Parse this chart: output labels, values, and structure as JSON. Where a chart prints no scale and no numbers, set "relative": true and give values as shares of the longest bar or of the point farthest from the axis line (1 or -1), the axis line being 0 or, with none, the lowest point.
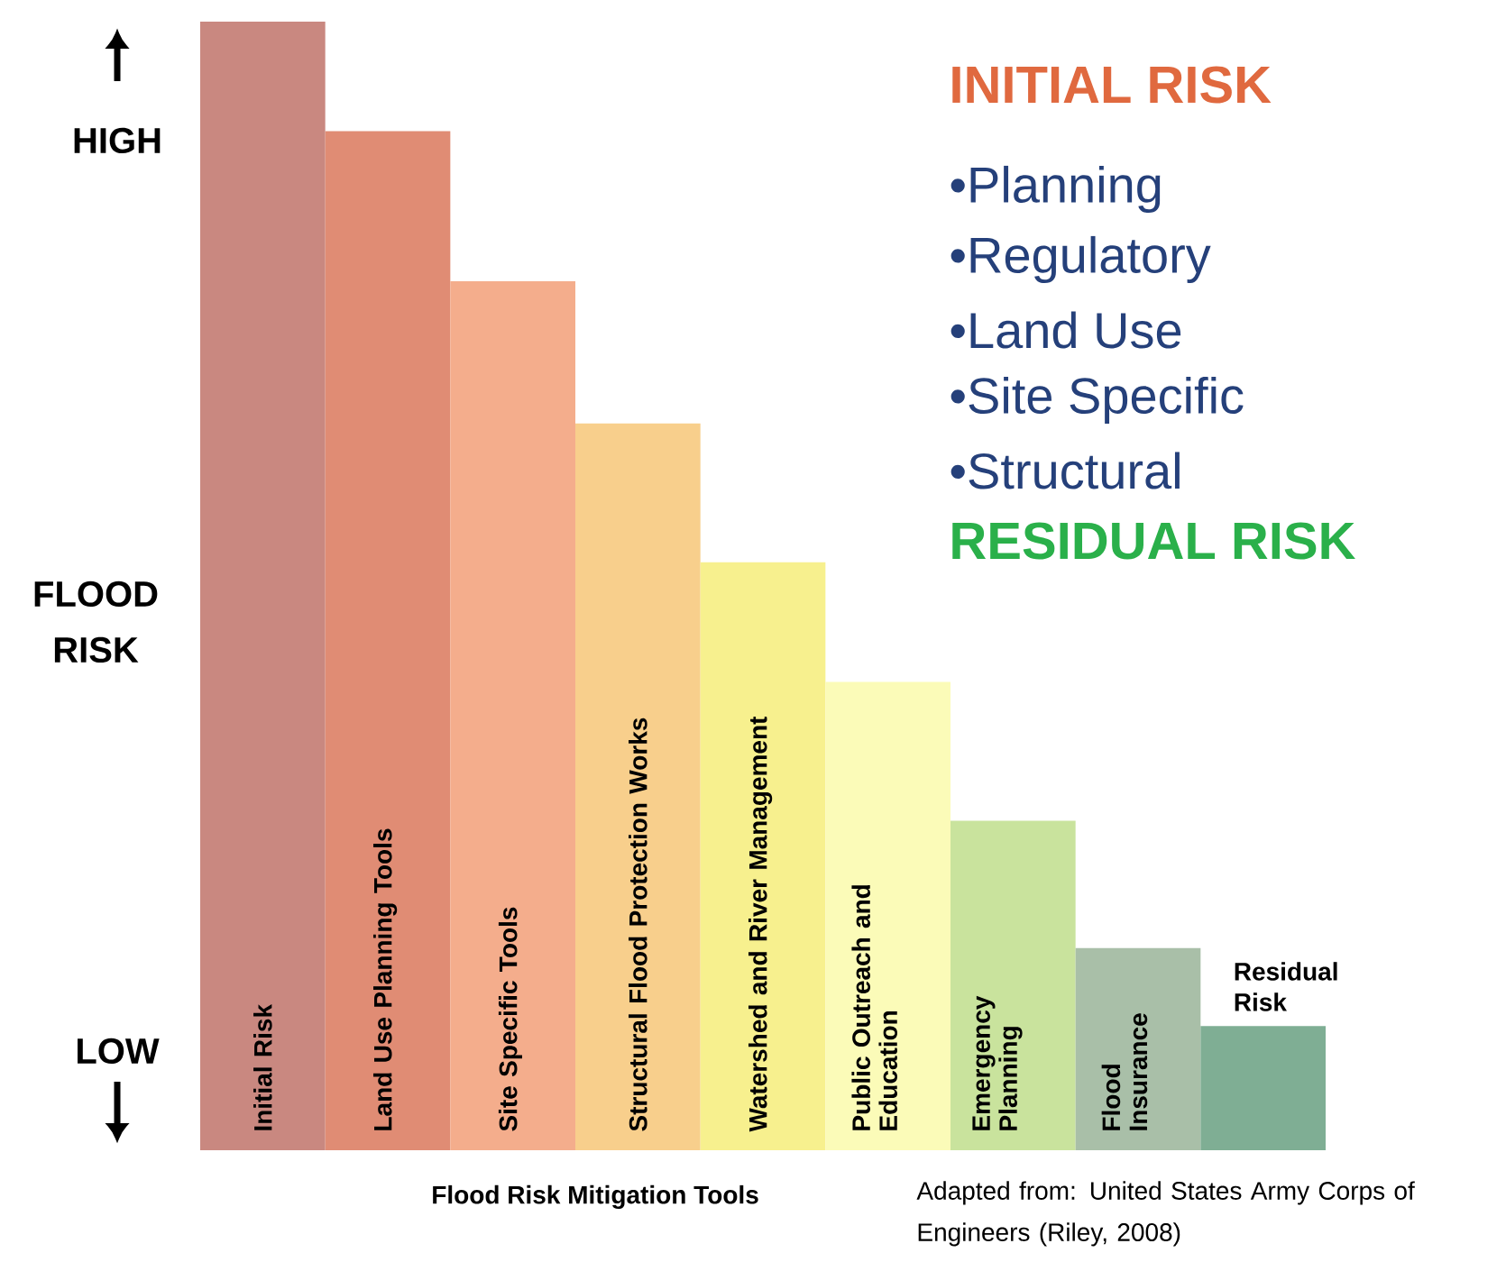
{
  "chart_data": {
    "type": "bar",
    "relative": true,
    "categories": [
      "Initial Risk",
      "Land Use Planning Tools",
      "Site Specific Tools",
      "Structural Flood Protection Works",
      "Watershed and River Management",
      "Public Outreach and Education",
      "Emergency Planning",
      "Flood Insurance",
      "Residual Risk"
    ],
    "values": [
      1,
      0.903,
      0.77,
      0.644,
      0.521,
      0.415,
      0.292,
      0.179,
      0.11
    ],
    "colors": [
      "#c98880",
      "#e08c74",
      "#f4ad8c",
      "#f8cf8c",
      "#f7f08e",
      "#fbfbb8",
      "#c9e39d",
      "#a9bfa8",
      "#7fae94"
    ],
    "xlabel": "Flood Risk Mitigation Tools",
    "ylabel": "FLOOD RISK",
    "annotations": [
      "INITIAL RISK",
      "•Planning",
      "•Regulatory",
      "•Land Use",
      "•Site Specific",
      "•Structural",
      "RESIDUAL RISK",
      "HIGH",
      "LOW",
      "Adapted from: United States Army Corps of Engineers (Riley, 2008)"
    ]
  }
}
